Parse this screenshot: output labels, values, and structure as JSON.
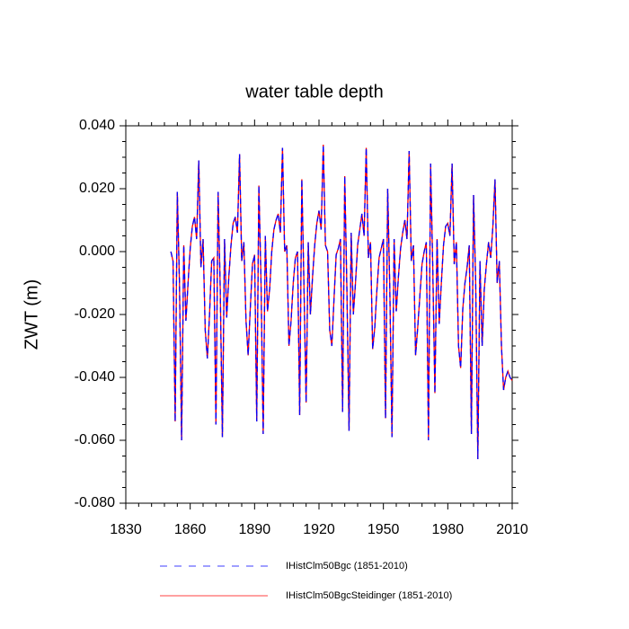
{
  "chart_data": {
    "type": "line",
    "title": "water table depth",
    "y_label": "ZWT  (m)",
    "xlim": [
      1830,
      2010
    ],
    "xticks": [
      1830,
      1860,
      1890,
      1920,
      1950,
      1980,
      2010
    ],
    "ylim": [
      -0.08,
      0.04
    ],
    "yticks": [
      {
        "value": -0.08,
        "label": "-0.080"
      },
      {
        "value": -0.06,
        "label": "-0.060"
      },
      {
        "value": -0.04,
        "label": "-0.040"
      },
      {
        "value": -0.02,
        "label": "-0.020"
      },
      {
        "value": 0,
        "label": "0.000"
      },
      {
        "value": 0.02,
        "label": "0.020"
      },
      {
        "value": 0.04,
        "label": "0.040"
      }
    ],
    "x": [
      1851,
      1852,
      1853,
      1854,
      1855,
      1856,
      1857,
      1858,
      1859,
      1860,
      1861,
      1862,
      1863,
      1864,
      1865,
      1866,
      1867,
      1868,
      1869,
      1870,
      1871,
      1872,
      1873,
      1874,
      1875,
      1876,
      1877,
      1878,
      1879,
      1880,
      1881,
      1882,
      1883,
      1884,
      1885,
      1886,
      1887,
      1888,
      1889,
      1890,
      1891,
      1892,
      1893,
      1894,
      1895,
      1896,
      1897,
      1898,
      1899,
      1900,
      1901,
      1902,
      1903,
      1904,
      1905,
      1906,
      1907,
      1908,
      1909,
      1910,
      1911,
      1912,
      1913,
      1914,
      1915,
      1916,
      1917,
      1918,
      1919,
      1920,
      1921,
      1922,
      1923,
      1924,
      1925,
      1926,
      1927,
      1928,
      1929,
      1930,
      1931,
      1932,
      1933,
      1934,
      1935,
      1936,
      1937,
      1938,
      1939,
      1940,
      1941,
      1942,
      1943,
      1944,
      1945,
      1946,
      1947,
      1948,
      1949,
      1950,
      1951,
      1952,
      1953,
      1954,
      1955,
      1956,
      1957,
      1958,
      1959,
      1960,
      1961,
      1962,
      1963,
      1964,
      1965,
      1966,
      1967,
      1968,
      1969,
      1970,
      1971,
      1972,
      1973,
      1974,
      1975,
      1976,
      1977,
      1978,
      1979,
      1980,
      1981,
      1982,
      1983,
      1984,
      1985,
      1986,
      1987,
      1988,
      1989,
      1990,
      1991,
      1992,
      1993,
      1994,
      1995,
      1996,
      1997,
      1998,
      1999,
      2000,
      2001,
      2002,
      2003,
      2004,
      2005,
      2006,
      2007,
      2008,
      2009,
      2010
    ],
    "series": [
      {
        "name": "IHistClm50BgcSteidinger (1851-2010)",
        "color": "#ff0000",
        "dash": false,
        "values": [
          0.0,
          -0.003,
          -0.054,
          0.019,
          -0.01,
          -0.06,
          0.002,
          -0.022,
          -0.01,
          0.001,
          0.008,
          0.011,
          0.004,
          0.029,
          -0.005,
          0.004,
          -0.025,
          -0.034,
          -0.02,
          -0.003,
          -0.002,
          -0.055,
          0.019,
          -0.012,
          -0.059,
          0.004,
          -0.021,
          -0.008,
          0.002,
          0.009,
          0.011,
          0.006,
          0.031,
          -0.003,
          0.003,
          -0.022,
          -0.033,
          -0.018,
          -0.004,
          -0.001,
          -0.054,
          0.021,
          -0.01,
          -0.058,
          0.005,
          -0.019,
          -0.012,
          0.0,
          0.007,
          0.01,
          0.012,
          0.006,
          0.033,
          0.0,
          0.002,
          -0.03,
          -0.022,
          -0.01,
          -0.002,
          0.0,
          -0.052,
          0.023,
          -0.011,
          -0.048,
          0.003,
          -0.02,
          -0.008,
          0.002,
          0.009,
          0.013,
          0.007,
          0.034,
          0.002,
          0.0,
          -0.025,
          -0.03,
          -0.015,
          -0.001,
          0.001,
          0.004,
          -0.051,
          0.024,
          -0.012,
          -0.057,
          0.006,
          -0.02,
          -0.01,
          0.002,
          0.007,
          0.012,
          0.005,
          0.033,
          -0.002,
          0.003,
          -0.031,
          -0.024,
          -0.012,
          -0.002,
          0.001,
          0.004,
          -0.053,
          0.02,
          -0.012,
          -0.059,
          0.004,
          -0.019,
          -0.008,
          0.001,
          0.006,
          0.01,
          0.004,
          0.032,
          -0.003,
          0.002,
          -0.033,
          -0.024,
          -0.014,
          -0.004,
          0.0,
          0.003,
          -0.06,
          0.028,
          -0.005,
          -0.045,
          0.004,
          -0.023,
          -0.01,
          0.002,
          0.008,
          0.009,
          0.005,
          0.028,
          -0.004,
          0.003,
          -0.03,
          -0.037,
          -0.018,
          -0.01,
          -0.005,
          0.002,
          -0.058,
          0.018,
          -0.01,
          -0.066,
          -0.003,
          -0.03,
          -0.012,
          -0.004,
          0.003,
          -0.002,
          0.008,
          0.023,
          -0.01,
          -0.003,
          -0.03,
          -0.044,
          -0.04,
          -0.038,
          -0.04,
          -0.041
        ]
      },
      {
        "name": "IHistClm50Bgc (1851-2010)",
        "color": "#0000ff",
        "dash": true,
        "values": [
          0.0,
          -0.003,
          -0.054,
          0.019,
          -0.01,
          -0.06,
          0.002,
          -0.022,
          -0.01,
          0.001,
          0.008,
          0.011,
          0.004,
          0.029,
          -0.005,
          0.004,
          -0.025,
          -0.034,
          -0.02,
          -0.003,
          -0.002,
          -0.055,
          0.019,
          -0.012,
          -0.059,
          0.004,
          -0.021,
          -0.008,
          0.002,
          0.009,
          0.011,
          0.006,
          0.031,
          -0.003,
          0.003,
          -0.022,
          -0.033,
          -0.018,
          -0.004,
          -0.001,
          -0.054,
          0.021,
          -0.01,
          -0.058,
          0.005,
          -0.019,
          -0.012,
          0.0,
          0.007,
          0.01,
          0.012,
          0.006,
          0.033,
          0.0,
          0.002,
          -0.03,
          -0.022,
          -0.01,
          -0.002,
          0.0,
          -0.052,
          0.023,
          -0.011,
          -0.048,
          0.003,
          -0.02,
          -0.008,
          0.002,
          0.009,
          0.013,
          0.007,
          0.034,
          0.002,
          0.0,
          -0.025,
          -0.03,
          -0.015,
          -0.001,
          0.001,
          0.004,
          -0.051,
          0.024,
          -0.012,
          -0.057,
          0.006,
          -0.02,
          -0.01,
          0.002,
          0.007,
          0.012,
          0.005,
          0.033,
          -0.002,
          0.003,
          -0.031,
          -0.024,
          -0.012,
          -0.002,
          0.001,
          0.004,
          -0.053,
          0.02,
          -0.012,
          -0.059,
          0.004,
          -0.019,
          -0.008,
          0.001,
          0.006,
          0.01,
          0.004,
          0.032,
          -0.003,
          0.002,
          -0.033,
          -0.024,
          -0.014,
          -0.004,
          0.0,
          0.003,
          -0.06,
          0.028,
          -0.005,
          -0.045,
          0.004,
          -0.023,
          -0.01,
          0.002,
          0.008,
          0.009,
          0.005,
          0.028,
          -0.004,
          0.003,
          -0.03,
          -0.037,
          -0.018,
          -0.01,
          -0.005,
          0.002,
          -0.058,
          0.018,
          -0.01,
          -0.066,
          -0.003,
          -0.03,
          -0.012,
          -0.004,
          0.003,
          -0.002,
          0.008,
          0.023,
          -0.01,
          -0.003,
          -0.03,
          -0.044,
          -0.04,
          -0.038,
          -0.04,
          -0.041
        ]
      }
    ]
  }
}
